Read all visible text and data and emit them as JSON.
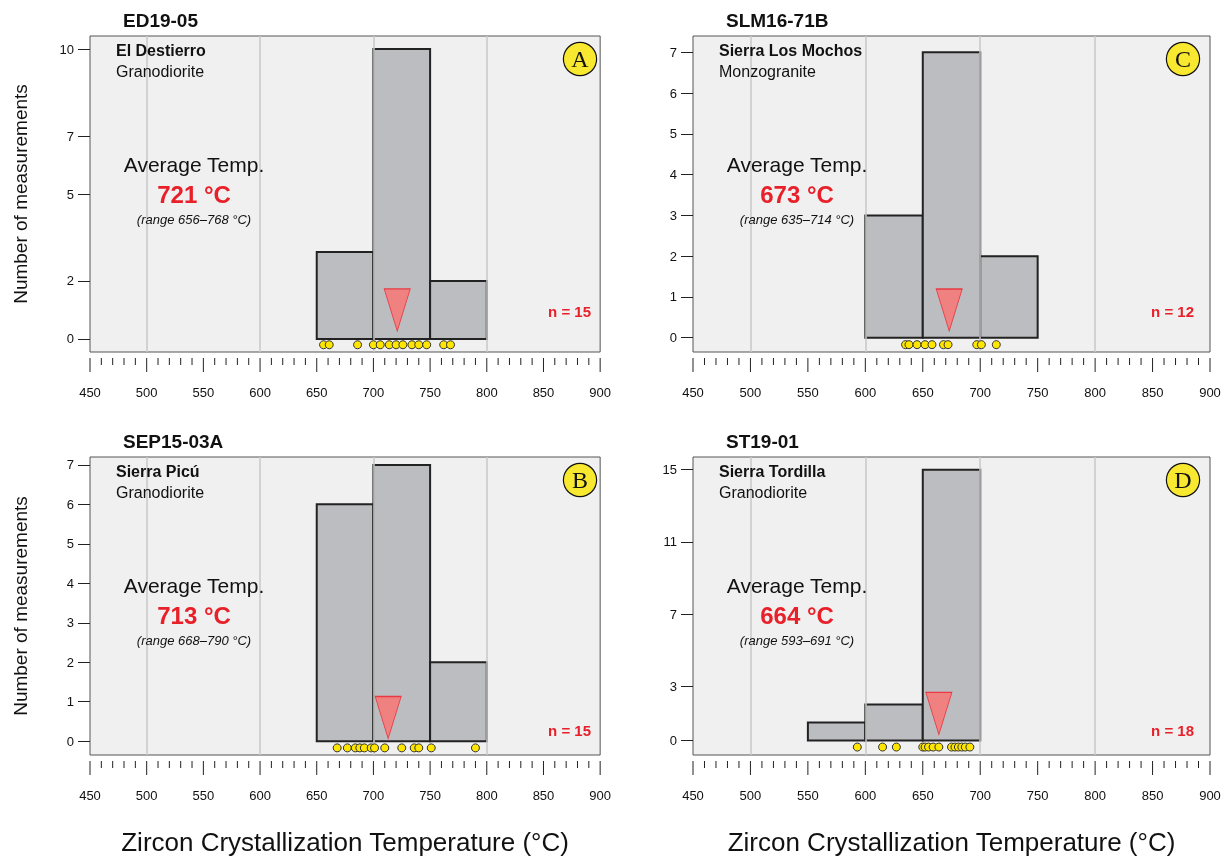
{
  "chart_data": [
    {
      "type": "histogram",
      "title": "ED19-05",
      "ylabel": "Number of measurements",
      "xlim": [
        450,
        900
      ],
      "xticks": [
        450,
        {
          "value": 460,
          "label": null
        },
        {
          "value": 470,
          "label": null
        },
        {
          "value": 480,
          "label": null
        },
        {
          "value": 490,
          "label": null
        },
        500,
        {
          "value": 510,
          "label": null
        },
        {
          "value": 520,
          "label": null
        },
        {
          "value": 530,
          "label": null
        },
        {
          "value": 540,
          "label": null
        },
        550,
        {
          "value": 560,
          "label": null
        },
        {
          "value": 570,
          "label": null
        },
        {
          "value": 580,
          "label": null
        },
        {
          "value": 590,
          "label": null
        },
        600,
        {
          "value": 610,
          "label": null
        },
        {
          "value": 620,
          "label": null
        },
        {
          "value": 630,
          "label": null
        },
        {
          "value": 640,
          "label": null
        },
        650,
        {
          "value": 660,
          "label": null
        },
        {
          "value": 670,
          "label": null
        },
        {
          "value": 680,
          "label": null
        },
        {
          "value": 690,
          "label": null
        },
        700,
        {
          "value": 710,
          "label": null
        },
        {
          "value": 720,
          "label": null
        },
        {
          "value": 730,
          "label": null
        },
        {
          "value": 740,
          "label": null
        },
        750,
        {
          "value": 760,
          "label": null
        },
        {
          "value": 770,
          "label": null
        },
        {
          "value": 780,
          "label": null
        },
        {
          "value": 790,
          "label": null
        },
        800,
        {
          "value": 810,
          "label": null
        },
        {
          "value": 820,
          "label": null
        },
        {
          "value": 830,
          "label": null
        },
        {
          "value": 840,
          "label": null
        },
        850,
        {
          "value": 860,
          "label": null
        },
        {
          "value": 870,
          "label": null
        },
        {
          "value": 880,
          "label": null
        },
        {
          "value": 890,
          "label": null
        },
        900
      ],
      "ylim": [
        -0.45,
        10.45
      ],
      "yticks": [
        0,
        2,
        5,
        7,
        10
      ],
      "annotations": [
        "El Destierro",
        "Granodiorite",
        "Average Temp.",
        "721 °C",
        "(range 656–768 °C)",
        "n = 15",
        "A"
      ],
      "ref_lines": [
        {
          "axis": "x",
          "value": 500,
          "color": "#c8c8c8"
        },
        {
          "axis": "x",
          "value": 600,
          "color": "#c8c8c8"
        },
        {
          "axis": "x",
          "value": 700,
          "color": "#c8c8c8"
        },
        {
          "axis": "x",
          "value": 800,
          "color": "#c8c8c8"
        }
      ],
      "series": [
        {
          "type": "histogram",
          "bins": [
            650,
            700,
            750,
            800
          ],
          "values": [
            3,
            10,
            2
          ],
          "color": "#bcbdc0"
        },
        {
          "type": "scatter",
          "marker": "circle",
          "color": "#ffe600",
          "x": [
            656,
            661,
            686,
            700,
            706,
            714,
            720,
            726,
            734,
            740,
            747,
            762,
            768
          ],
          "values": [
            -0.2,
            -0.2,
            -0.2,
            -0.2,
            -0.2,
            -0.2,
            -0.2,
            -0.2,
            -0.2,
            -0.2,
            -0.2,
            -0.2,
            -0.2
          ]
        },
        {
          "type": "scatter",
          "marker": "triangle",
          "color": "#f47a7a",
          "x": [
            721
          ],
          "values": [
            1.0
          ]
        }
      ]
    },
    {
      "type": "histogram",
      "title": "SLM16-71B",
      "xlim": [
        450,
        900
      ],
      "xticks": [
        450,
        {
          "value": 460,
          "label": null
        },
        {
          "value": 470,
          "label": null
        },
        {
          "value": 480,
          "label": null
        },
        {
          "value": 490,
          "label": null
        },
        500,
        {
          "value": 510,
          "label": null
        },
        {
          "value": 520,
          "label": null
        },
        {
          "value": 530,
          "label": null
        },
        {
          "value": 540,
          "label": null
        },
        550,
        {
          "value": 560,
          "label": null
        },
        {
          "value": 570,
          "label": null
        },
        {
          "value": 580,
          "label": null
        },
        {
          "value": 590,
          "label": null
        },
        600,
        {
          "value": 610,
          "label": null
        },
        {
          "value": 620,
          "label": null
        },
        {
          "value": 630,
          "label": null
        },
        {
          "value": 640,
          "label": null
        },
        650,
        {
          "value": 660,
          "label": null
        },
        {
          "value": 670,
          "label": null
        },
        {
          "value": 680,
          "label": null
        },
        {
          "value": 690,
          "label": null
        },
        700,
        {
          "value": 710,
          "label": null
        },
        {
          "value": 720,
          "label": null
        },
        {
          "value": 730,
          "label": null
        },
        {
          "value": 740,
          "label": null
        },
        750,
        {
          "value": 760,
          "label": null
        },
        {
          "value": 770,
          "label": null
        },
        {
          "value": 780,
          "label": null
        },
        {
          "value": 790,
          "label": null
        },
        800,
        {
          "value": 810,
          "label": null
        },
        {
          "value": 820,
          "label": null
        },
        {
          "value": 830,
          "label": null
        },
        {
          "value": 840,
          "label": null
        },
        850,
        {
          "value": 860,
          "label": null
        },
        {
          "value": 870,
          "label": null
        },
        {
          "value": 880,
          "label": null
        },
        {
          "value": 890,
          "label": null
        },
        900
      ],
      "ylim": [
        -0.35,
        7.4
      ],
      "yticks": [
        0,
        1,
        2,
        3,
        4,
        5,
        6,
        7
      ],
      "annotations": [
        "Sierra Los Mochos",
        "Monzogranite",
        "Average Temp.",
        "673 °C",
        "(range 635–714 °C)",
        "n = 12",
        "C"
      ],
      "ref_lines": [
        {
          "axis": "x",
          "value": 500,
          "color": "#c8c8c8"
        },
        {
          "axis": "x",
          "value": 600,
          "color": "#c8c8c8"
        },
        {
          "axis": "x",
          "value": 700,
          "color": "#c8c8c8"
        },
        {
          "axis": "x",
          "value": 800,
          "color": "#c8c8c8"
        }
      ],
      "series": [
        {
          "type": "histogram",
          "bins": [
            600,
            650,
            700,
            750
          ],
          "values": [
            3,
            7,
            2
          ],
          "color": "#bcbdc0"
        },
        {
          "type": "scatter",
          "marker": "circle",
          "color": "#ffe600",
          "x": [
            635,
            638,
            645,
            652,
            658,
            668,
            672,
            697,
            701,
            714
          ],
          "values": [
            -0.17,
            -0.17,
            -0.17,
            -0.17,
            -0.17,
            -0.17,
            -0.17,
            -0.17,
            -0.17,
            -0.17
          ]
        },
        {
          "type": "scatter",
          "marker": "triangle",
          "color": "#f47a7a",
          "x": [
            673
          ],
          "values": [
            0.68
          ]
        }
      ]
    },
    {
      "type": "histogram",
      "title": "SEP15-03A",
      "ylabel": "Number of measurements",
      "xlabel": "Zircon Crystallization Temperature (°C)",
      "xlim": [
        450,
        900
      ],
      "xticks": [
        450,
        {
          "value": 460,
          "label": null
        },
        {
          "value": 470,
          "label": null
        },
        {
          "value": 480,
          "label": null
        },
        {
          "value": 490,
          "label": null
        },
        500,
        {
          "value": 510,
          "label": null
        },
        {
          "value": 520,
          "label": null
        },
        {
          "value": 530,
          "label": null
        },
        {
          "value": 540,
          "label": null
        },
        550,
        {
          "value": 560,
          "label": null
        },
        {
          "value": 570,
          "label": null
        },
        {
          "value": 580,
          "label": null
        },
        {
          "value": 590,
          "label": null
        },
        600,
        {
          "value": 610,
          "label": null
        },
        {
          "value": 620,
          "label": null
        },
        {
          "value": 630,
          "label": null
        },
        {
          "value": 640,
          "label": null
        },
        650,
        {
          "value": 660,
          "label": null
        },
        {
          "value": 670,
          "label": null
        },
        {
          "value": 680,
          "label": null
        },
        {
          "value": 690,
          "label": null
        },
        700,
        {
          "value": 710,
          "label": null
        },
        {
          "value": 720,
          "label": null
        },
        {
          "value": 730,
          "label": null
        },
        {
          "value": 740,
          "label": null
        },
        750,
        {
          "value": 760,
          "label": null
        },
        {
          "value": 770,
          "label": null
        },
        {
          "value": 780,
          "label": null
        },
        {
          "value": 790,
          "label": null
        },
        800,
        {
          "value": 810,
          "label": null
        },
        {
          "value": 820,
          "label": null
        },
        {
          "value": 830,
          "label": null
        },
        {
          "value": 840,
          "label": null
        },
        850,
        {
          "value": 860,
          "label": null
        },
        {
          "value": 870,
          "label": null
        },
        {
          "value": 880,
          "label": null
        },
        {
          "value": 890,
          "label": null
        },
        900
      ],
      "ylim": [
        -0.35,
        7.2
      ],
      "yticks": [
        0,
        1,
        2,
        3,
        4,
        5,
        6,
        7
      ],
      "annotations": [
        "Sierra Picú",
        "Granodiorite",
        "Average Temp.",
        "713 °C",
        "(range 668–790 °C)",
        "n = 15",
        "B"
      ],
      "ref_lines": [
        {
          "axis": "x",
          "value": 500,
          "color": "#c8c8c8"
        },
        {
          "axis": "x",
          "value": 600,
          "color": "#c8c8c8"
        },
        {
          "axis": "x",
          "value": 700,
          "color": "#c8c8c8"
        },
        {
          "axis": "x",
          "value": 800,
          "color": "#c8c8c8"
        }
      ],
      "series": [
        {
          "type": "histogram",
          "bins": [
            650,
            700,
            750,
            800
          ],
          "values": [
            6,
            7,
            2
          ],
          "color": "#bcbdc0"
        },
        {
          "type": "scatter",
          "marker": "circle",
          "color": "#ffe600",
          "x": [
            668,
            677,
            684,
            688,
            692,
            698,
            701,
            710,
            725,
            736,
            740,
            751,
            790
          ],
          "values": [
            -0.17,
            -0.17,
            -0.17,
            -0.17,
            -0.17,
            -0.17,
            -0.17,
            -0.17,
            -0.17,
            -0.17,
            -0.17,
            -0.17,
            -0.17
          ]
        },
        {
          "type": "scatter",
          "marker": "triangle",
          "color": "#f47a7a",
          "x": [
            713
          ],
          "values": [
            0.6
          ]
        }
      ]
    },
    {
      "type": "histogram",
      "title": "ST19-01",
      "xlabel": "Zircon Crystallization Temperature (°C)",
      "xlim": [
        450,
        900
      ],
      "xticks": [
        450,
        {
          "value": 460,
          "label": null
        },
        {
          "value": 470,
          "label": null
        },
        {
          "value": 480,
          "label": null
        },
        {
          "value": 490,
          "label": null
        },
        500,
        {
          "value": 510,
          "label": null
        },
        {
          "value": 520,
          "label": null
        },
        {
          "value": 530,
          "label": null
        },
        {
          "value": 540,
          "label": null
        },
        550,
        {
          "value": 560,
          "label": null
        },
        {
          "value": 570,
          "label": null
        },
        {
          "value": 580,
          "label": null
        },
        {
          "value": 590,
          "label": null
        },
        600,
        {
          "value": 610,
          "label": null
        },
        {
          "value": 620,
          "label": null
        },
        {
          "value": 630,
          "label": null
        },
        {
          "value": 640,
          "label": null
        },
        650,
        {
          "value": 660,
          "label": null
        },
        {
          "value": 670,
          "label": null
        },
        {
          "value": 680,
          "label": null
        },
        {
          "value": 690,
          "label": null
        },
        700,
        {
          "value": 710,
          "label": null
        },
        {
          "value": 720,
          "label": null
        },
        {
          "value": 730,
          "label": null
        },
        {
          "value": 740,
          "label": null
        },
        750,
        {
          "value": 760,
          "label": null
        },
        {
          "value": 770,
          "label": null
        },
        {
          "value": 780,
          "label": null
        },
        {
          "value": 790,
          "label": null
        },
        800,
        {
          "value": 810,
          "label": null
        },
        {
          "value": 820,
          "label": null
        },
        {
          "value": 830,
          "label": null
        },
        {
          "value": 840,
          "label": null
        },
        850,
        {
          "value": 860,
          "label": null
        },
        {
          "value": 870,
          "label": null
        },
        {
          "value": 880,
          "label": null
        },
        {
          "value": 890,
          "label": null
        },
        900
      ],
      "ylim": [
        -0.8,
        15.7
      ],
      "yticks": [
        0,
        3,
        7,
        11,
        15
      ],
      "annotations": [
        "Sierra Tordilla",
        "Granodiorite",
        "Average Temp.",
        "664 °C",
        "(range 593–691 °C)",
        "n = 18",
        "D"
      ],
      "ref_lines": [
        {
          "axis": "x",
          "value": 500,
          "color": "#c8c8c8"
        },
        {
          "axis": "x",
          "value": 600,
          "color": "#c8c8c8"
        },
        {
          "axis": "x",
          "value": 700,
          "color": "#c8c8c8"
        },
        {
          "axis": "x",
          "value": 800,
          "color": "#c8c8c8"
        }
      ],
      "series": [
        {
          "type": "histogram",
          "bins": [
            550,
            600,
            650,
            700
          ],
          "values": [
            1,
            2,
            15
          ],
          "color": "#bcbdc0"
        },
        {
          "type": "scatter",
          "marker": "circle",
          "color": "#ffe600",
          "x": [
            593,
            615,
            627,
            650,
            652,
            655,
            659,
            664,
            675,
            678,
            681,
            684,
            687,
            691
          ],
          "values": [
            -0.36,
            -0.36,
            -0.36,
            -0.36,
            -0.36,
            -0.36,
            -0.36,
            -0.36,
            -0.36,
            -0.36,
            -0.36,
            -0.36,
            -0.36,
            -0.36
          ]
        },
        {
          "type": "scatter",
          "marker": "triangle",
          "color": "#f47a7a",
          "x": [
            664
          ],
          "values": [
            1.5
          ]
        }
      ]
    }
  ]
}
